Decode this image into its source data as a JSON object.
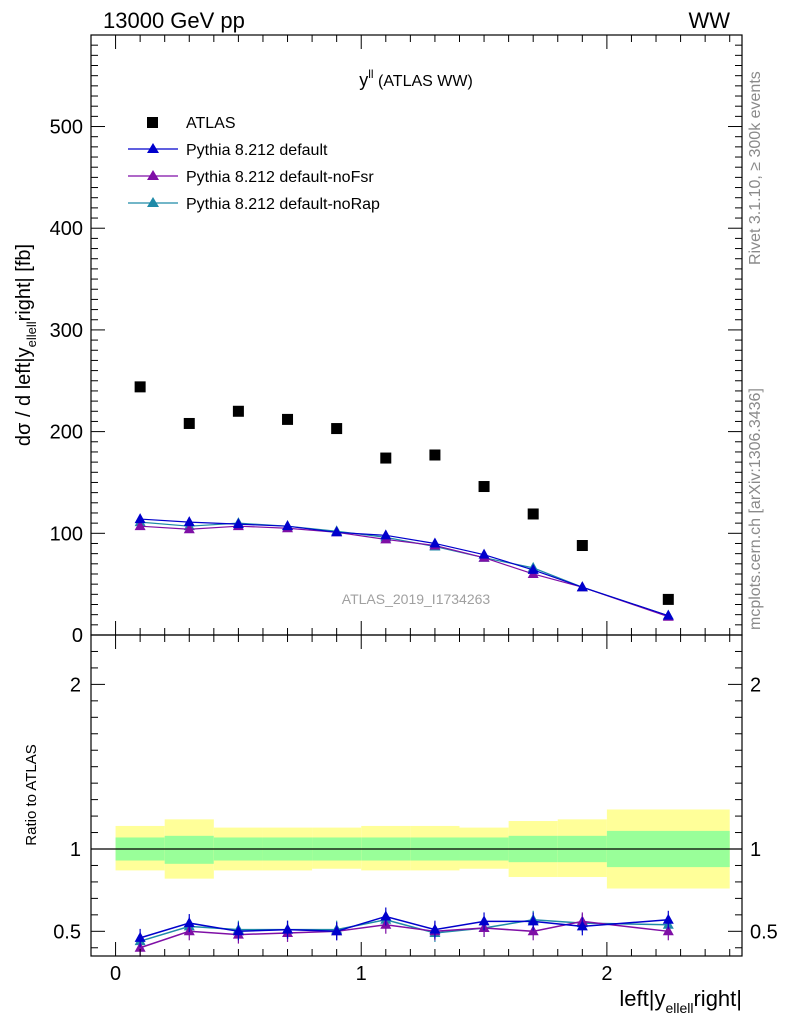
{
  "header": {
    "left": "13000 GeV pp",
    "right": "WW"
  },
  "side_labels": {
    "rivet": "Rivet 3.1.10, ≥ 300k events",
    "mcplots": "mcplots.cern.ch [arXiv:1306.3436]"
  },
  "chart_data": [
    {
      "type": "scatter",
      "title_main": "y",
      "title_sup": "ll",
      "title_rest": " (ATLAS WW)",
      "watermark": "ATLAS_2019_I1734263",
      "ylabel_main": "dσ / d left|y",
      "ylabel_sub": "ellell",
      "ylabel_rest": "right| [fb]",
      "xlim": [
        -0.1,
        2.55
      ],
      "ylim": [
        0,
        590
      ],
      "yticks": [
        0,
        100,
        200,
        300,
        400,
        500
      ],
      "ytick_labels": [
        "0",
        "100",
        "200",
        "300",
        "400",
        "500"
      ],
      "x": [
        0.1,
        0.3,
        0.5,
        0.7,
        0.9,
        1.1,
        1.3,
        1.5,
        1.7,
        1.9,
        2.25
      ],
      "series": [
        {
          "name": "ATLAS",
          "marker": "square",
          "color": "#000000",
          "values": [
            244,
            208,
            220,
            212,
            203,
            174,
            177,
            146,
            119,
            88,
            35
          ]
        },
        {
          "name": "Pythia 8.212 default",
          "marker": "triangle",
          "color": "#0000cc",
          "values": [
            114,
            111,
            109,
            107,
            101,
            98,
            90,
            79,
            64,
            47,
            19
          ]
        },
        {
          "name": "Pythia 8.212 default-noFsr",
          "marker": "triangle",
          "color": "#7f0fa6",
          "values": [
            107,
            104,
            107,
            105,
            101,
            94,
            88,
            76,
            60,
            47,
            18
          ]
        },
        {
          "name": "Pythia 8.212 default-noRap",
          "marker": "triangle",
          "color": "#1f8aa8",
          "values": [
            111,
            107,
            110,
            107,
            102,
            96,
            87,
            76,
            66,
            47,
            19
          ]
        }
      ]
    },
    {
      "type": "line",
      "ylabel": "Ratio to ATLAS",
      "xlabel_main": "left|y",
      "xlabel_sub": "ellell",
      "xlabel_rest": "right|",
      "xlim": [
        -0.1,
        2.55
      ],
      "ylim": [
        0.35,
        2.3
      ],
      "xticks": [
        0,
        1,
        2
      ],
      "xtick_labels": [
        "0",
        "1",
        "2"
      ],
      "yticks": [
        0.5,
        1,
        2
      ],
      "ytick_labels": [
        "0.5",
        "1",
        "2"
      ],
      "bins": [
        [
          0,
          0.2
        ],
        [
          0.2,
          0.4
        ],
        [
          0.4,
          0.6
        ],
        [
          0.6,
          0.8
        ],
        [
          0.8,
          1.0
        ],
        [
          1.0,
          1.2
        ],
        [
          1.2,
          1.4
        ],
        [
          1.4,
          1.6
        ],
        [
          1.6,
          1.8
        ],
        [
          1.8,
          2.0
        ],
        [
          2.0,
          2.5
        ]
      ],
      "band_inner": [
        [
          0.93,
          1.07
        ],
        [
          0.91,
          1.08
        ],
        [
          0.93,
          1.07
        ],
        [
          0.93,
          1.07
        ],
        [
          0.93,
          1.07
        ],
        [
          0.93,
          1.07
        ],
        [
          0.93,
          1.07
        ],
        [
          0.93,
          1.07
        ],
        [
          0.92,
          1.08
        ],
        [
          0.92,
          1.08
        ],
        [
          0.89,
          1.11
        ]
      ],
      "band_outer": [
        [
          0.87,
          1.14
        ],
        [
          0.82,
          1.18
        ],
        [
          0.87,
          1.13
        ],
        [
          0.87,
          1.13
        ],
        [
          0.88,
          1.13
        ],
        [
          0.87,
          1.14
        ],
        [
          0.87,
          1.14
        ],
        [
          0.88,
          1.13
        ],
        [
          0.83,
          1.17
        ],
        [
          0.83,
          1.18
        ],
        [
          0.76,
          1.24
        ]
      ],
      "x": [
        0.1,
        0.3,
        0.5,
        0.7,
        0.9,
        1.1,
        1.3,
        1.5,
        1.7,
        1.9,
        2.25
      ],
      "series": [
        {
          "name": "Pythia 8.212 default",
          "color": "#0000cc",
          "values": [
            0.46,
            0.55,
            0.5,
            0.51,
            0.5,
            0.59,
            0.51,
            0.56,
            0.56,
            0.53,
            0.57
          ]
        },
        {
          "name": "Pythia 8.212 default-noFsr",
          "color": "#7f0fa6",
          "values": [
            0.4,
            0.5,
            0.48,
            0.49,
            0.5,
            0.54,
            0.5,
            0.52,
            0.5,
            0.56,
            0.5
          ]
        },
        {
          "name": "Pythia 8.212 default-noRap",
          "color": "#1f8aa8",
          "values": [
            0.44,
            0.53,
            0.51,
            0.51,
            0.51,
            0.57,
            0.49,
            0.52,
            0.57,
            0.55,
            0.54
          ]
        }
      ]
    }
  ]
}
